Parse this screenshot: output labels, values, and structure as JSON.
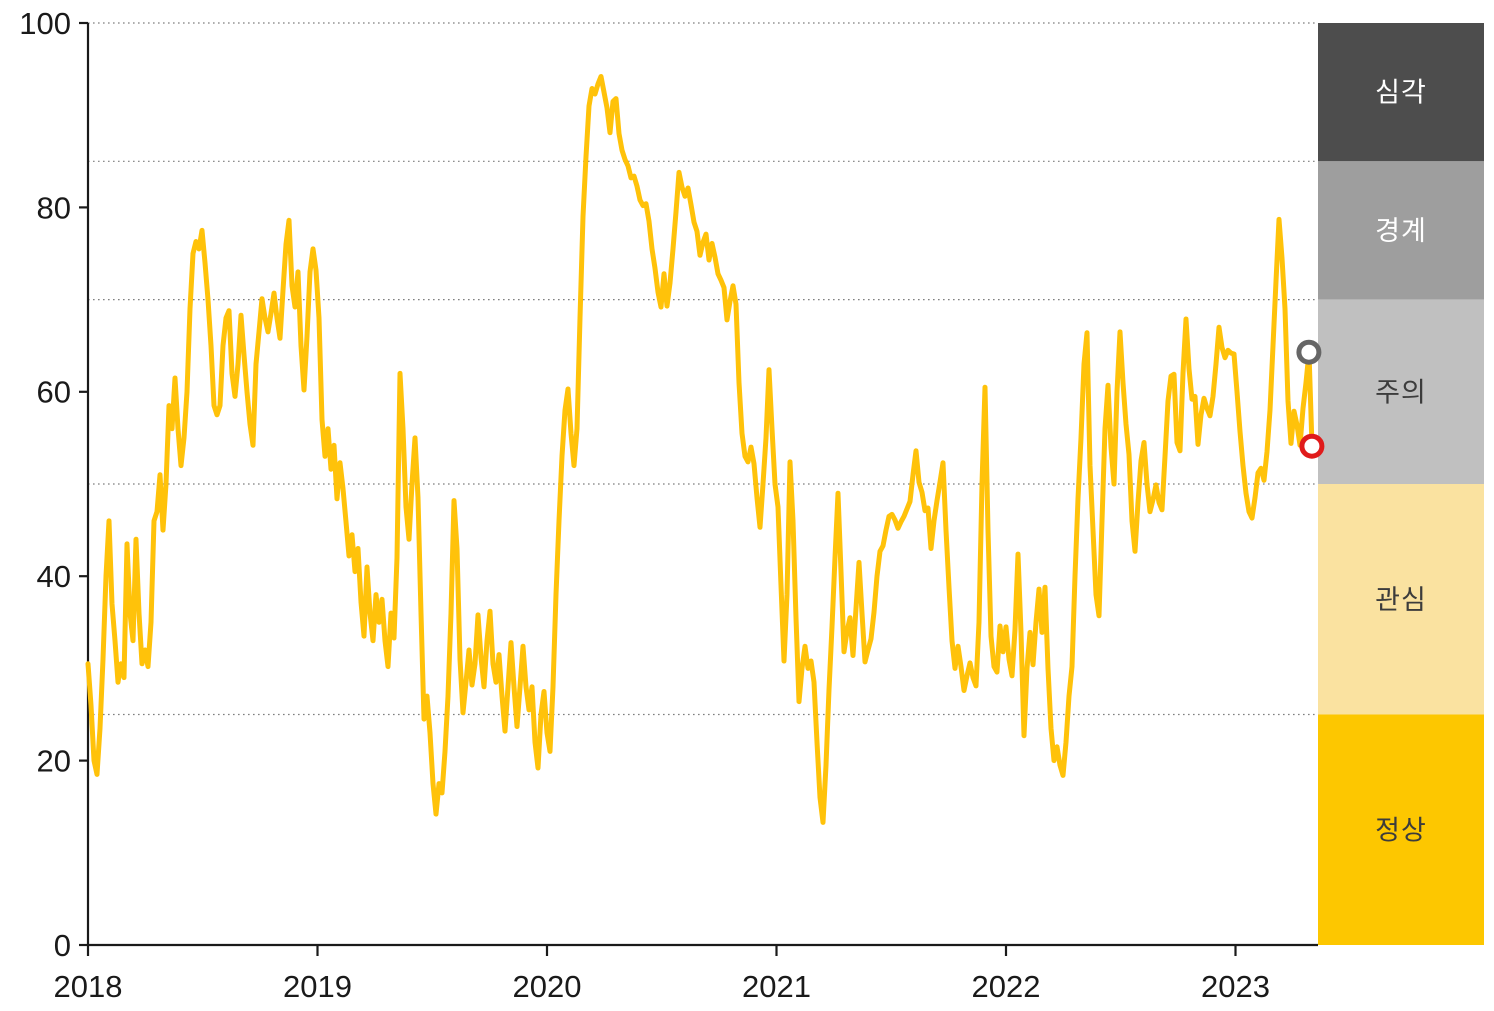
{
  "chart_data": {
    "type": "line",
    "title": "",
    "x_axis": {
      "tick_years": [
        2018,
        2019,
        2020,
        2021,
        2022,
        2023
      ],
      "tick_labels": [
        "2018",
        "2019",
        "2020",
        "2021",
        "2022",
        "2023"
      ],
      "range_years": [
        2018,
        2023.36
      ]
    },
    "y_axis": {
      "ticks": [
        0,
        20,
        40,
        60,
        80,
        100
      ],
      "tick_labels": [
        "0",
        "20",
        "40",
        "60",
        "80",
        "100"
      ],
      "range": [
        0,
        100
      ]
    },
    "grid": {
      "dotted_levels": [
        25,
        50,
        70,
        85,
        100
      ],
      "color": "#7f7f7f"
    },
    "zones": [
      {
        "id": "severe",
        "label": "심각",
        "range": [
          85,
          100
        ],
        "color": "#4d4d4d",
        "text_color": "#ffffff"
      },
      {
        "id": "alert",
        "label": "경계",
        "range": [
          70,
          85
        ],
        "color": "#9e9e9e",
        "text_color": "#ffffff"
      },
      {
        "id": "caution",
        "label": "주의",
        "range": [
          50,
          70
        ],
        "color": "#c0c0c0",
        "text_color": "#3c3c3c"
      },
      {
        "id": "attention",
        "label": "관심",
        "range": [
          25,
          50
        ],
        "color": "#fae2a0",
        "text_color": "#3c3c3c"
      },
      {
        "id": "normal",
        "label": "정상",
        "range": [
          0,
          25
        ],
        "color": "#fdc700",
        "text_color": "#3c3c3c"
      }
    ],
    "series": [
      {
        "name": "index",
        "color": "#ffc20a",
        "start_year": 2018.0,
        "end_year": 2023.3333,
        "values": [
          30.5,
          26,
          20,
          18.5,
          23.5,
          31,
          40,
          46,
          37,
          33,
          28.5,
          30.5,
          29,
          43.5,
          36,
          33,
          44,
          36,
          30.5,
          32,
          30.2,
          35,
          46,
          47,
          51,
          45,
          50,
          58.5,
          56,
          61.5,
          56,
          52,
          55,
          60,
          69,
          75,
          76.3,
          75.5,
          77.5,
          74,
          70,
          65,
          58.5,
          57.5,
          58.5,
          65,
          68,
          68.8,
          62,
          59.5,
          63,
          68.3,
          64,
          60,
          56.5,
          54.2,
          63,
          66.5,
          70.1,
          68,
          66.5,
          68.5,
          70.7,
          68,
          65.8,
          71,
          76,
          78.6,
          71.5,
          69.2,
          73,
          65,
          60.2,
          66,
          73,
          75.5,
          73.2,
          68,
          57,
          53,
          56,
          51.6,
          54.2,
          48.4,
          52.3,
          49.5,
          45.9,
          42.2,
          44.5,
          40.5,
          43,
          37.2,
          33.5,
          41,
          36,
          33,
          38,
          35,
          37.5,
          33,
          30.2,
          36,
          33.3,
          42,
          62,
          56,
          47.5,
          44,
          50,
          55,
          48.5,
          36,
          24.5,
          27,
          23,
          17.5,
          14.2,
          17.5,
          16.5,
          21,
          27,
          36,
          48.2,
          43,
          31,
          25.2,
          28.5,
          32,
          28.2,
          30.5,
          35.8,
          31.2,
          28,
          33,
          36.2,
          30.5,
          28.5,
          31.5,
          27,
          23.2,
          28,
          32.8,
          28,
          23.7,
          28,
          32.4,
          28,
          25.5,
          28,
          22,
          19.2,
          25,
          27.5,
          23,
          21,
          28,
          38,
          46,
          53,
          58,
          60.3,
          55.5,
          52,
          56,
          68,
          79,
          85.5,
          91,
          92.9,
          92.3,
          93.4,
          94.2,
          92.5,
          90.8,
          88.1,
          91.5,
          91.8,
          88,
          86.2,
          85.2,
          84.5,
          83.2,
          83.4,
          82.3,
          80.8,
          80.2,
          80.4,
          78.5,
          75.5,
          73.4,
          70.8,
          69.2,
          72.8,
          69.3,
          71.8,
          75.5,
          79.5,
          83.8,
          82.2,
          81.2,
          82.1,
          80.3,
          78.4,
          77.4,
          74.8,
          76.2,
          77.1,
          74.3,
          76.1,
          74.6,
          72.8,
          72.1,
          71.3,
          67.8,
          69.8,
          71.5,
          69.5,
          61,
          55.5,
          53,
          52.4,
          54,
          52.2,
          48.5,
          45.3,
          50,
          55,
          62.4,
          56,
          50,
          47.5,
          39,
          30.8,
          38,
          52.4,
          46,
          35.5,
          26.4,
          30,
          32.4,
          30,
          30.8,
          28.5,
          22,
          16,
          13.3,
          19.5,
          27.7,
          34.5,
          42,
          49,
          40.5,
          31.8,
          34,
          35.5,
          31.4,
          36.5,
          41.5,
          36,
          30.7,
          32,
          33.2,
          36.1,
          40,
          42.7,
          43.3,
          45,
          46.5,
          46.7,
          46.1,
          45.2,
          45.9,
          46.5,
          47.3,
          48.1,
          51,
          53.6,
          50.2,
          49.1,
          47.1,
          47.4,
          43,
          46,
          48.2,
          50.2,
          52.3,
          45,
          38.8,
          33,
          30,
          32.4,
          30.2,
          27.6,
          29.2,
          30.6,
          29,
          28.1,
          35,
          50,
          60.5,
          45,
          33.5,
          30.2,
          29.6,
          34.6,
          31.8,
          34.5,
          31,
          29.2,
          34.2,
          42.4,
          33.9,
          22.7,
          30,
          33.9,
          30.4,
          35,
          38.6,
          33.9,
          38.8,
          30,
          23.5,
          20,
          21.5,
          19.5,
          18.4,
          22,
          27,
          30.2,
          40,
          48.4,
          55,
          63,
          66.4,
          52,
          45,
          38,
          35.7,
          46,
          56,
          60.7,
          54,
          50,
          60,
          66.5,
          61,
          56.5,
          53.2,
          46,
          42.7,
          48,
          52.5,
          54.5,
          50,
          47,
          48.3,
          49.9,
          48,
          47.2,
          53,
          59,
          61.7,
          61.9,
          54.5,
          53.6,
          62,
          67.9,
          62.5,
          59.2,
          59.5,
          54.3,
          57.5,
          59.3,
          58.2,
          57.4,
          59.5,
          63,
          67,
          64.8,
          63.7,
          64.5,
          64.2,
          64.1,
          60,
          55.7,
          52,
          49,
          47,
          46.3,
          48.5,
          51.2,
          51.7,
          50.4,
          53.5,
          58,
          65,
          72,
          78.7,
          74.5,
          69,
          59,
          54.4,
          57.9,
          56.4,
          54.2,
          58.2,
          61,
          64.3,
          54.1
        ]
      }
    ],
    "markers": [
      {
        "id": "previous-high-marker",
        "year": 2023.32,
        "value": 64.3,
        "color": "#666666"
      },
      {
        "id": "latest-point-marker",
        "year": 2023.333,
        "value": 54.1,
        "color": "#e01b1b"
      }
    ],
    "colors": {
      "axis": "#1a1a1a",
      "tick_label": "#1a1a1a",
      "background": "#ffffff"
    }
  }
}
